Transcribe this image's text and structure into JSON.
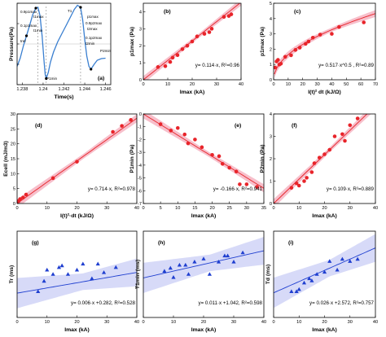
{
  "colors": {
    "red": "#e8242a",
    "red_band": "#f4a9b9",
    "blue": "#1f3fd0",
    "blue_band": "#c9cdf5",
    "trace": "#3a7fd0",
    "eq_red": "#ff1a1a",
    "eq_blue": "#1a22e0"
  },
  "chart_data": [
    {
      "id": "a",
      "panel_label": "(a)",
      "type": "line",
      "ylabel": "Pressure(Pa)",
      "xlabel": "Time(s)",
      "xticks": [
        "1.238",
        "1.24",
        "1.242",
        "1.244",
        "1.246"
      ],
      "xlim": [
        1.2375,
        1.2465
      ],
      "ylim": [
        -1,
        1
      ],
      "annotations": [
        "0.9p1max",
        "t1max",
        "T1",
        "p1max",
        "0.9p2max",
        "t2max",
        "0.1p1max",
        "t1min",
        "tref",
        "0.1p2max",
        "t2min",
        "P2min",
        "P1min"
      ],
      "x": [
        1.2375,
        1.2378,
        1.2381,
        1.2384,
        1.2387,
        1.239,
        1.2393,
        1.2395,
        1.2397,
        1.2399,
        1.2401,
        1.2402,
        1.2403,
        1.2405,
        1.2407,
        1.241,
        1.2414,
        1.2418,
        1.2422,
        1.2426,
        1.243,
        1.2433,
        1.2436,
        1.2438,
        1.244,
        1.2442,
        1.2444,
        1.2446,
        1.2449,
        1.2452,
        1.2456,
        1.246
      ],
      "y": [
        -0.55,
        -0.35,
        -0.05,
        0.2,
        0.45,
        0.72,
        0.88,
        0.9,
        0.7,
        0.2,
        -0.45,
        -0.75,
        -0.85,
        -0.7,
        -0.45,
        -0.2,
        0.05,
        0.25,
        0.45,
        0.65,
        0.85,
        0.95,
        0.9,
        0.6,
        0.1,
        -0.3,
        -0.55,
        -0.62,
        -0.5,
        -0.4,
        -0.36,
        -0.35
      ]
    },
    {
      "id": "b",
      "panel_label": "(b)",
      "type": "scatter",
      "color": "red",
      "ylabel": "p1max (Pa)",
      "xlabel": "Imax (kA)",
      "xlim": [
        0,
        40
      ],
      "ylim": [
        0,
        4.5
      ],
      "xticks": [
        0,
        10,
        20,
        30,
        40
      ],
      "yticks": [
        0,
        1,
        2,
        3,
        4
      ],
      "x": [
        6,
        9,
        11,
        12,
        14,
        16,
        18,
        20,
        22,
        25,
        27,
        28,
        33,
        35,
        36
      ],
      "y": [
        0.75,
        0.8,
        1.05,
        1.3,
        1.45,
        1.8,
        2.0,
        2.25,
        2.55,
        2.7,
        2.8,
        3.0,
        3.7,
        3.75,
        3.85
      ],
      "fit": {
        "kind": "linear",
        "a": 0.114
      },
      "equation": "y= 0.114·x, R²=0.96"
    },
    {
      "id": "c",
      "panel_label": "(c)",
      "type": "scatter",
      "color": "red",
      "ylabel": "p1max (Pa)",
      "xlabel": "I(t)² dt (kJ/Ω)",
      "xlim": [
        0,
        70
      ],
      "ylim": [
        0,
        5
      ],
      "xticks": [
        0,
        10,
        20,
        30,
        40,
        50,
        60,
        70
      ],
      "yticks": [
        0,
        1,
        2,
        3,
        4,
        5
      ],
      "x": [
        1,
        2,
        3,
        4,
        5,
        8,
        12,
        15,
        18,
        22,
        24,
        27,
        32,
        40,
        45,
        62
      ],
      "y": [
        0.8,
        1.2,
        1.3,
        1.0,
        1.05,
        1.5,
        1.6,
        1.95,
        2.1,
        2.35,
        2.5,
        2.75,
        2.95,
        3.0,
        3.45,
        3.75
      ],
      "fit": {
        "kind": "power",
        "a": 0.517,
        "b": 0.5
      },
      "equation": "y= 0.517·x^0.5 , R²=0.89"
    },
    {
      "id": "d",
      "panel_label": "(d)",
      "type": "scatter",
      "color": "red",
      "ylabel": "Ecell (mJ/m3)",
      "xlabel": "I(t)²·dt (kJ/Ω)",
      "xlim": [
        0,
        40
      ],
      "ylim": [
        0,
        30
      ],
      "xticks": [
        0,
        10,
        20,
        30,
        40
      ],
      "yticks": [
        0,
        5,
        10,
        15,
        20,
        25,
        30
      ],
      "x": [
        0.5,
        1,
        2,
        3,
        12,
        20,
        32,
        35,
        38
      ],
      "y": [
        0.8,
        1.5,
        2.0,
        3.0,
        8.5,
        14,
        24,
        26,
        28
      ],
      "fit": {
        "kind": "linear",
        "a": 0.714
      },
      "equation": "y= 0.714·x, R²=0.978"
    },
    {
      "id": "e",
      "panel_label": "(e)",
      "type": "scatter",
      "color": "red",
      "ylabel": "P1min (Pa)",
      "xlabel": "Imax (kA)",
      "xlim": [
        0,
        35
      ],
      "ylim": [
        -7,
        0
      ],
      "xticks": [
        0,
        5,
        10,
        15,
        20,
        25,
        30,
        35
      ],
      "yticks": [
        0,
        -1,
        -2,
        -3,
        -4,
        -5,
        -6,
        -7
      ],
      "x": [
        5,
        8,
        10,
        12,
        13,
        15,
        17,
        20,
        22,
        23,
        25,
        27,
        28,
        30,
        33
      ],
      "y": [
        -0.8,
        -1.3,
        -1.1,
        -1.6,
        -2.3,
        -2.0,
        -2.6,
        -3.2,
        -3.3,
        -3.9,
        -4.2,
        -4.5,
        -5.5,
        -5.5,
        -5.7
      ],
      "fit": {
        "kind": "linear",
        "a": -0.166
      },
      "equation": "y= -0.166·x, R²=0.941"
    },
    {
      "id": "f",
      "panel_label": "(f)",
      "type": "scatter",
      "color": "red",
      "ylabel": "P2min (Pa)",
      "xlabel": "Imax (kA)",
      "xlim": [
        0,
        40
      ],
      "ylim": [
        0,
        4
      ],
      "xticks": [
        0,
        10,
        20,
        30,
        40
      ],
      "yticks": [
        0,
        1,
        2,
        3,
        4
      ],
      "x": [
        7,
        9,
        10,
        12,
        13,
        15,
        16,
        18,
        20,
        22,
        24,
        27,
        28,
        30,
        33
      ],
      "y": [
        0.7,
        0.9,
        0.8,
        1.0,
        1.15,
        1.4,
        1.8,
        2.05,
        2.2,
        2.4,
        3.0,
        3.1,
        2.8,
        3.5,
        3.8
      ],
      "fit": {
        "kind": "linear",
        "a": 0.109
      },
      "equation": "y= 0.109·x, R²=0.889"
    },
    {
      "id": "g",
      "panel_label": "(g)",
      "type": "scatter",
      "color": "blue",
      "ylabel": "Tr (ms)",
      "xlabel": "Imax (kA)",
      "xlim": [
        0,
        40
      ],
      "ylim": [
        0,
        1
      ],
      "xticks": [
        0,
        10,
        20,
        30,
        40
      ],
      "yticks": [],
      "x": [
        7,
        9,
        10,
        12,
        14,
        15,
        17,
        20,
        22,
        25,
        27,
        29,
        33
      ],
      "y": [
        0.3,
        0.42,
        0.55,
        0.5,
        0.58,
        0.6,
        0.5,
        0.55,
        0.62,
        0.45,
        0.62,
        0.52,
        0.58
      ],
      "fit": {
        "kind": "linear_int",
        "a": 0.006,
        "b": 0.282
      },
      "equation": "y= 0.006·x +0.282, R²=0.528"
    },
    {
      "id": "h",
      "panel_label": "(h)",
      "type": "scatter",
      "color": "blue",
      "ylabel": "T1min (ms)",
      "xlabel": "Imax (kA)",
      "xlim": [
        0,
        40
      ],
      "ylim": [
        0.4,
        1.8
      ],
      "xticks": [
        0,
        10,
        20,
        30,
        40
      ],
      "yticks": [],
      "x": [
        7,
        9,
        10,
        12,
        14,
        15,
        17,
        20,
        22,
        25,
        27,
        28,
        30,
        33
      ],
      "y": [
        1.15,
        1.2,
        1.05,
        1.25,
        1.25,
        1.1,
        1.3,
        1.35,
        1.1,
        1.3,
        1.4,
        1.4,
        1.3,
        1.45
      ],
      "fit": {
        "kind": "linear_int",
        "a": 0.011,
        "b": 1.042
      },
      "equation": "y= 0.011·x +1.042, R²=0.598"
    },
    {
      "id": "i",
      "panel_label": "(i)",
      "type": "scatter",
      "color": "blue",
      "ylabel": "Td (ms)",
      "xlabel": "Imax (kA)",
      "xlim": [
        0,
        40
      ],
      "ylim": [
        2,
        4
      ],
      "xticks": [
        0,
        10,
        20,
        30,
        40
      ],
      "yticks": [],
      "x": [
        7,
        9,
        10,
        12,
        14,
        15,
        17,
        20,
        22,
        25,
        27,
        30,
        33
      ],
      "y": [
        2.6,
        2.6,
        2.65,
        2.8,
        2.9,
        2.85,
        3.0,
        3.05,
        3.3,
        3.1,
        3.35,
        3.3,
        3.35
      ],
      "fit": {
        "kind": "linear_int",
        "a": 0.026,
        "b": 2.572
      },
      "equation": "y= 0.026·x +2.572, R²=0.757"
    }
  ]
}
